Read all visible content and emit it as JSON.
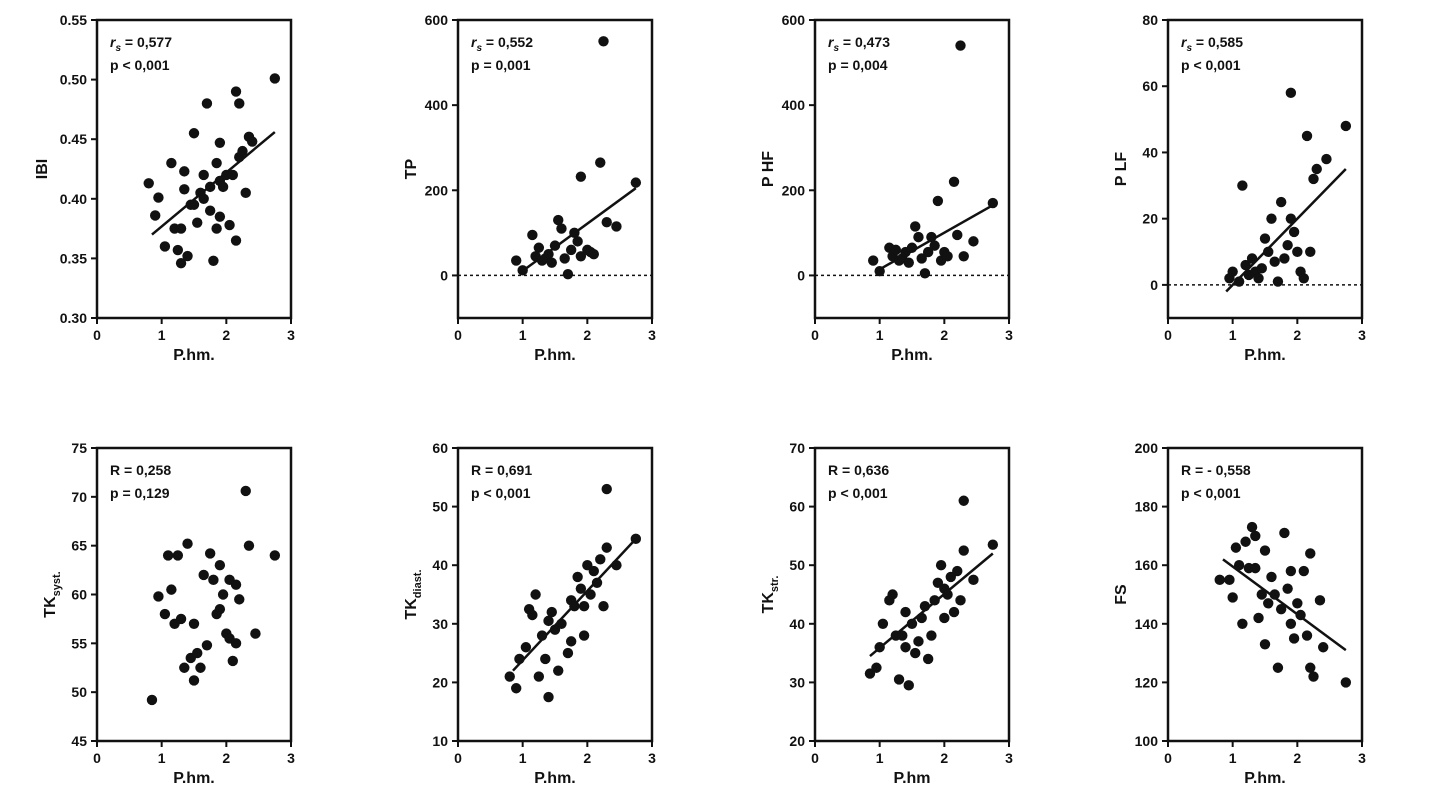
{
  "chart_data": [
    {
      "type": "scatter",
      "ylabel": "IBI",
      "xlabel": "P.hm.",
      "xlim": [
        0,
        3
      ],
      "ylim": [
        0.3,
        0.55
      ],
      "xticks": [
        "0",
        "1",
        "2",
        "3"
      ],
      "yticks": [
        "0.30",
        "0.35",
        "0.40",
        "0.45",
        "0.50",
        "0.55"
      ],
      "annotation": {
        "stat_label": "r",
        "stat_sub": "s",
        "stat_value": " = 0,577",
        "p_text": "p < 0,001"
      },
      "regression": {
        "x": [
          0.85,
          2.75
        ],
        "y": [
          0.37,
          0.456
        ]
      },
      "baseline": null,
      "points": [
        [
          0.8,
          0.413
        ],
        [
          0.9,
          0.386
        ],
        [
          0.95,
          0.401
        ],
        [
          1.05,
          0.36
        ],
        [
          1.15,
          0.43
        ],
        [
          1.2,
          0.375
        ],
        [
          1.25,
          0.357
        ],
        [
          1.3,
          0.346
        ],
        [
          1.3,
          0.375
        ],
        [
          1.35,
          0.408
        ],
        [
          1.35,
          0.423
        ],
        [
          1.4,
          0.352
        ],
        [
          1.45,
          0.395
        ],
        [
          1.5,
          0.395
        ],
        [
          1.5,
          0.455
        ],
        [
          1.55,
          0.38
        ],
        [
          1.6,
          0.405
        ],
        [
          1.65,
          0.4
        ],
        [
          1.65,
          0.42
        ],
        [
          1.7,
          0.48
        ],
        [
          1.75,
          0.39
        ],
        [
          1.75,
          0.41
        ],
        [
          1.8,
          0.348
        ],
        [
          1.85,
          0.375
        ],
        [
          1.85,
          0.43
        ],
        [
          1.9,
          0.385
        ],
        [
          1.9,
          0.415
        ],
        [
          1.9,
          0.447
        ],
        [
          1.95,
          0.41
        ],
        [
          2.0,
          0.42
        ],
        [
          2.05,
          0.378
        ],
        [
          2.1,
          0.42
        ],
        [
          2.15,
          0.365
        ],
        [
          2.15,
          0.49
        ],
        [
          2.2,
          0.48
        ],
        [
          2.2,
          0.435
        ],
        [
          2.25,
          0.44
        ],
        [
          2.3,
          0.405
        ],
        [
          2.35,
          0.452
        ],
        [
          2.4,
          0.448
        ],
        [
          2.75,
          0.501
        ]
      ]
    },
    {
      "type": "scatter",
      "ylabel": "TP",
      "xlabel": "P.hm.",
      "xlim": [
        0,
        3
      ],
      "ylim": [
        -100,
        600
      ],
      "xticks": [
        "0",
        "1",
        "2",
        "3"
      ],
      "yticks": [
        "0",
        "200",
        "400",
        "600"
      ],
      "annotation": {
        "stat_label": "r",
        "stat_sub": "s",
        "stat_value": " = 0,552",
        "p_text": "p = 0,001"
      },
      "regression": {
        "x": [
          0.95,
          2.75
        ],
        "y": [
          5,
          205
        ]
      },
      "baseline": 0,
      "points": [
        [
          0.9,
          35
        ],
        [
          1.0,
          12
        ],
        [
          1.15,
          95
        ],
        [
          1.2,
          45
        ],
        [
          1.25,
          65
        ],
        [
          1.3,
          35
        ],
        [
          1.35,
          40
        ],
        [
          1.4,
          50
        ],
        [
          1.45,
          30
        ],
        [
          1.5,
          70
        ],
        [
          1.55,
          130
        ],
        [
          1.6,
          110
        ],
        [
          1.65,
          40
        ],
        [
          1.7,
          3
        ],
        [
          1.75,
          60
        ],
        [
          1.8,
          100
        ],
        [
          1.85,
          80
        ],
        [
          1.9,
          45
        ],
        [
          1.9,
          232
        ],
        [
          2.0,
          60
        ],
        [
          2.05,
          55
        ],
        [
          2.1,
          50
        ],
        [
          2.2,
          265
        ],
        [
          2.25,
          550
        ],
        [
          2.3,
          125
        ],
        [
          2.45,
          115
        ],
        [
          2.75,
          218
        ]
      ]
    },
    {
      "type": "scatter",
      "ylabel": "P HF",
      "xlabel": "P.hm.",
      "xlim": [
        0,
        3
      ],
      "ylim": [
        -100,
        600
      ],
      "xticks": [
        "0",
        "1",
        "2",
        "3"
      ],
      "yticks": [
        "0",
        "200",
        "400",
        "600"
      ],
      "annotation": {
        "stat_label": "r",
        "stat_sub": "s",
        "stat_value": " = 0,473",
        "p_text": "p = 0,004"
      },
      "regression": {
        "x": [
          0.95,
          2.75
        ],
        "y": [
          10,
          165
        ]
      },
      "baseline": 0,
      "points": [
        [
          0.9,
          35
        ],
        [
          1.0,
          10
        ],
        [
          1.15,
          65
        ],
        [
          1.2,
          45
        ],
        [
          1.25,
          60
        ],
        [
          1.3,
          35
        ],
        [
          1.35,
          40
        ],
        [
          1.4,
          55
        ],
        [
          1.45,
          30
        ],
        [
          1.5,
          65
        ],
        [
          1.55,
          115
        ],
        [
          1.6,
          90
        ],
        [
          1.65,
          40
        ],
        [
          1.7,
          5
        ],
        [
          1.75,
          55
        ],
        [
          1.8,
          90
        ],
        [
          1.85,
          70
        ],
        [
          1.9,
          175
        ],
        [
          1.95,
          35
        ],
        [
          2.0,
          55
        ],
        [
          2.05,
          45
        ],
        [
          2.15,
          220
        ],
        [
          2.2,
          95
        ],
        [
          2.25,
          540
        ],
        [
          2.3,
          45
        ],
        [
          2.45,
          80
        ],
        [
          2.75,
          170
        ]
      ]
    },
    {
      "type": "scatter",
      "ylabel": "P LF",
      "xlabel": "P.hm.",
      "xlim": [
        0,
        3
      ],
      "ylim": [
        -10,
        80
      ],
      "xticks": [
        "0",
        "1",
        "2",
        "3"
      ],
      "yticks": [
        "0",
        "20",
        "40",
        "60",
        "80"
      ],
      "annotation": {
        "stat_label": "r",
        "stat_sub": "s",
        "stat_value": " = 0,585",
        "p_text": "p < 0,001"
      },
      "regression": {
        "x": [
          0.9,
          2.75
        ],
        "y": [
          -2,
          35
        ]
      },
      "baseline": 0,
      "points": [
        [
          0.95,
          2
        ],
        [
          1.0,
          4
        ],
        [
          1.1,
          1
        ],
        [
          1.15,
          30
        ],
        [
          1.2,
          6
        ],
        [
          1.25,
          3
        ],
        [
          1.3,
          8
        ],
        [
          1.35,
          4
        ],
        [
          1.4,
          2
        ],
        [
          1.45,
          5
        ],
        [
          1.5,
          14
        ],
        [
          1.55,
          10
        ],
        [
          1.6,
          20
        ],
        [
          1.65,
          7
        ],
        [
          1.7,
          1
        ],
        [
          1.75,
          25
        ],
        [
          1.8,
          8
        ],
        [
          1.85,
          12
        ],
        [
          1.9,
          58
        ],
        [
          1.9,
          20
        ],
        [
          1.95,
          16
        ],
        [
          2.0,
          10
        ],
        [
          2.05,
          4
        ],
        [
          2.1,
          2
        ],
        [
          2.15,
          45
        ],
        [
          2.2,
          10
        ],
        [
          2.25,
          32
        ],
        [
          2.3,
          35
        ],
        [
          2.45,
          38
        ],
        [
          2.75,
          48
        ]
      ]
    },
    {
      "type": "scatter",
      "ylabel": "TK",
      "ylabel_sub": "syst.",
      "xlabel": "P.hm.",
      "xlim": [
        0,
        3
      ],
      "ylim": [
        45,
        75
      ],
      "xticks": [
        "0",
        "1",
        "2",
        "3"
      ],
      "yticks": [
        "45",
        "50",
        "55",
        "60",
        "65",
        "70",
        "75"
      ],
      "annotation": {
        "stat_label": "R",
        "stat_sub": "",
        "stat_value": " = 0,258",
        "p_text": "p = 0,129"
      },
      "regression": null,
      "baseline": null,
      "points": [
        [
          0.85,
          49.2
        ],
        [
          0.95,
          59.8
        ],
        [
          1.05,
          58.0
        ],
        [
          1.1,
          64.0
        ],
        [
          1.15,
          60.5
        ],
        [
          1.2,
          57.0
        ],
        [
          1.25,
          64.0
        ],
        [
          1.3,
          57.5
        ],
        [
          1.35,
          52.5
        ],
        [
          1.4,
          65.2
        ],
        [
          1.45,
          53.5
        ],
        [
          1.5,
          51.2
        ],
        [
          1.5,
          57.0
        ],
        [
          1.55,
          54.0
        ],
        [
          1.6,
          52.5
        ],
        [
          1.65,
          62.0
        ],
        [
          1.7,
          54.8
        ],
        [
          1.75,
          64.2
        ],
        [
          1.8,
          61.5
        ],
        [
          1.85,
          58.0
        ],
        [
          1.9,
          63.0
        ],
        [
          1.9,
          58.5
        ],
        [
          1.95,
          60.0
        ],
        [
          2.0,
          56.0
        ],
        [
          2.05,
          61.5
        ],
        [
          2.05,
          55.5
        ],
        [
          2.1,
          53.2
        ],
        [
          2.15,
          61.0
        ],
        [
          2.15,
          55.0
        ],
        [
          2.2,
          59.5
        ],
        [
          2.3,
          70.6
        ],
        [
          2.35,
          65.0
        ],
        [
          2.45,
          56.0
        ],
        [
          2.75,
          64.0
        ]
      ]
    },
    {
      "type": "scatter",
      "ylabel": "TK",
      "ylabel_sub": "diast.",
      "xlabel": "P.hm.",
      "xlim": [
        0,
        3
      ],
      "ylim": [
        10,
        60
      ],
      "xticks": [
        "0",
        "1",
        "2",
        "3"
      ],
      "yticks": [
        "10",
        "20",
        "30",
        "40",
        "50",
        "60"
      ],
      "annotation": {
        "stat_label": "R",
        "stat_sub": "",
        "stat_value": " = 0,691",
        "p_text": "p < 0,001"
      },
      "regression": {
        "x": [
          0.85,
          2.75
        ],
        "y": [
          22,
          44.5
        ]
      },
      "baseline": null,
      "points": [
        [
          0.8,
          21
        ],
        [
          0.9,
          19
        ],
        [
          0.95,
          24
        ],
        [
          1.05,
          26
        ],
        [
          1.1,
          32.5
        ],
        [
          1.15,
          31.5
        ],
        [
          1.2,
          35
        ],
        [
          1.25,
          21
        ],
        [
          1.3,
          28
        ],
        [
          1.35,
          24
        ],
        [
          1.4,
          17.5
        ],
        [
          1.4,
          30.5
        ],
        [
          1.45,
          32
        ],
        [
          1.5,
          29
        ],
        [
          1.55,
          22
        ],
        [
          1.6,
          30
        ],
        [
          1.7,
          25
        ],
        [
          1.75,
          34
        ],
        [
          1.75,
          27
        ],
        [
          1.8,
          33
        ],
        [
          1.85,
          38
        ],
        [
          1.9,
          36
        ],
        [
          1.95,
          33
        ],
        [
          1.95,
          28
        ],
        [
          2.0,
          40
        ],
        [
          2.05,
          35
        ],
        [
          2.1,
          39
        ],
        [
          2.15,
          37
        ],
        [
          2.2,
          41
        ],
        [
          2.25,
          33
        ],
        [
          2.3,
          53
        ],
        [
          2.3,
          43
        ],
        [
          2.45,
          40
        ],
        [
          2.75,
          44.5
        ]
      ]
    },
    {
      "type": "scatter",
      "ylabel": "TK",
      "ylabel_sub": "str.",
      "xlabel": "P.hm",
      "xlim": [
        0,
        3
      ],
      "ylim": [
        20,
        70
      ],
      "xticks": [
        "0",
        "1",
        "2",
        "3"
      ],
      "yticks": [
        "20",
        "30",
        "40",
        "50",
        "60",
        "70"
      ],
      "annotation": {
        "stat_label": "R",
        "stat_sub": "",
        "stat_value": " = 0,636",
        "p_text": "p < 0,001"
      },
      "regression": {
        "x": [
          0.85,
          2.75
        ],
        "y": [
          34.5,
          52
        ]
      },
      "baseline": null,
      "points": [
        [
          0.85,
          31.5
        ],
        [
          0.95,
          32.5
        ],
        [
          1.0,
          36
        ],
        [
          1.05,
          40
        ],
        [
          1.15,
          44
        ],
        [
          1.2,
          45
        ],
        [
          1.25,
          38
        ],
        [
          1.3,
          30.5
        ],
        [
          1.35,
          38
        ],
        [
          1.4,
          36
        ],
        [
          1.4,
          42
        ],
        [
          1.45,
          29.5
        ],
        [
          1.5,
          40
        ],
        [
          1.55,
          35
        ],
        [
          1.6,
          37
        ],
        [
          1.65,
          41
        ],
        [
          1.7,
          43
        ],
        [
          1.75,
          34
        ],
        [
          1.8,
          38
        ],
        [
          1.85,
          44
        ],
        [
          1.9,
          47
        ],
        [
          1.95,
          50
        ],
        [
          2.0,
          41
        ],
        [
          2.0,
          46
        ],
        [
          2.05,
          45
        ],
        [
          2.1,
          48
        ],
        [
          2.15,
          42
        ],
        [
          2.2,
          49
        ],
        [
          2.25,
          44
        ],
        [
          2.3,
          52.5
        ],
        [
          2.3,
          61
        ],
        [
          2.45,
          47.5
        ],
        [
          2.75,
          53.5
        ]
      ]
    },
    {
      "type": "scatter",
      "ylabel": "FS",
      "xlabel": "P.hm.",
      "xlim": [
        0,
        3
      ],
      "ylim": [
        100,
        200
      ],
      "xticks": [
        "0",
        "1",
        "2",
        "3"
      ],
      "yticks": [
        "100",
        "120",
        "140",
        "160",
        "180",
        "200"
      ],
      "annotation": {
        "stat_label": "R",
        "stat_sub": "",
        "stat_value": " = - 0,558",
        "p_text": "p < 0,001"
      },
      "regression": {
        "x": [
          0.85,
          2.75
        ],
        "y": [
          162,
          131
        ]
      },
      "baseline": null,
      "points": [
        [
          0.8,
          155
        ],
        [
          0.95,
          155
        ],
        [
          1.0,
          149
        ],
        [
          1.05,
          166
        ],
        [
          1.1,
          160
        ],
        [
          1.15,
          140
        ],
        [
          1.2,
          168
        ],
        [
          1.25,
          159
        ],
        [
          1.3,
          173
        ],
        [
          1.35,
          170
        ],
        [
          1.35,
          159
        ],
        [
          1.4,
          142
        ],
        [
          1.45,
          150
        ],
        [
          1.5,
          133
        ],
        [
          1.5,
          165
        ],
        [
          1.55,
          147
        ],
        [
          1.6,
          156
        ],
        [
          1.65,
          150
        ],
        [
          1.7,
          125
        ],
        [
          1.75,
          145
        ],
        [
          1.8,
          171
        ],
        [
          1.85,
          152
        ],
        [
          1.9,
          140
        ],
        [
          1.9,
          158
        ],
        [
          1.95,
          135
        ],
        [
          2.0,
          147
        ],
        [
          2.05,
          143
        ],
        [
          2.1,
          158
        ],
        [
          2.15,
          136
        ],
        [
          2.2,
          164
        ],
        [
          2.2,
          125
        ],
        [
          2.25,
          122
        ],
        [
          2.35,
          148
        ],
        [
          2.4,
          132
        ],
        [
          2.75,
          120
        ]
      ]
    }
  ]
}
